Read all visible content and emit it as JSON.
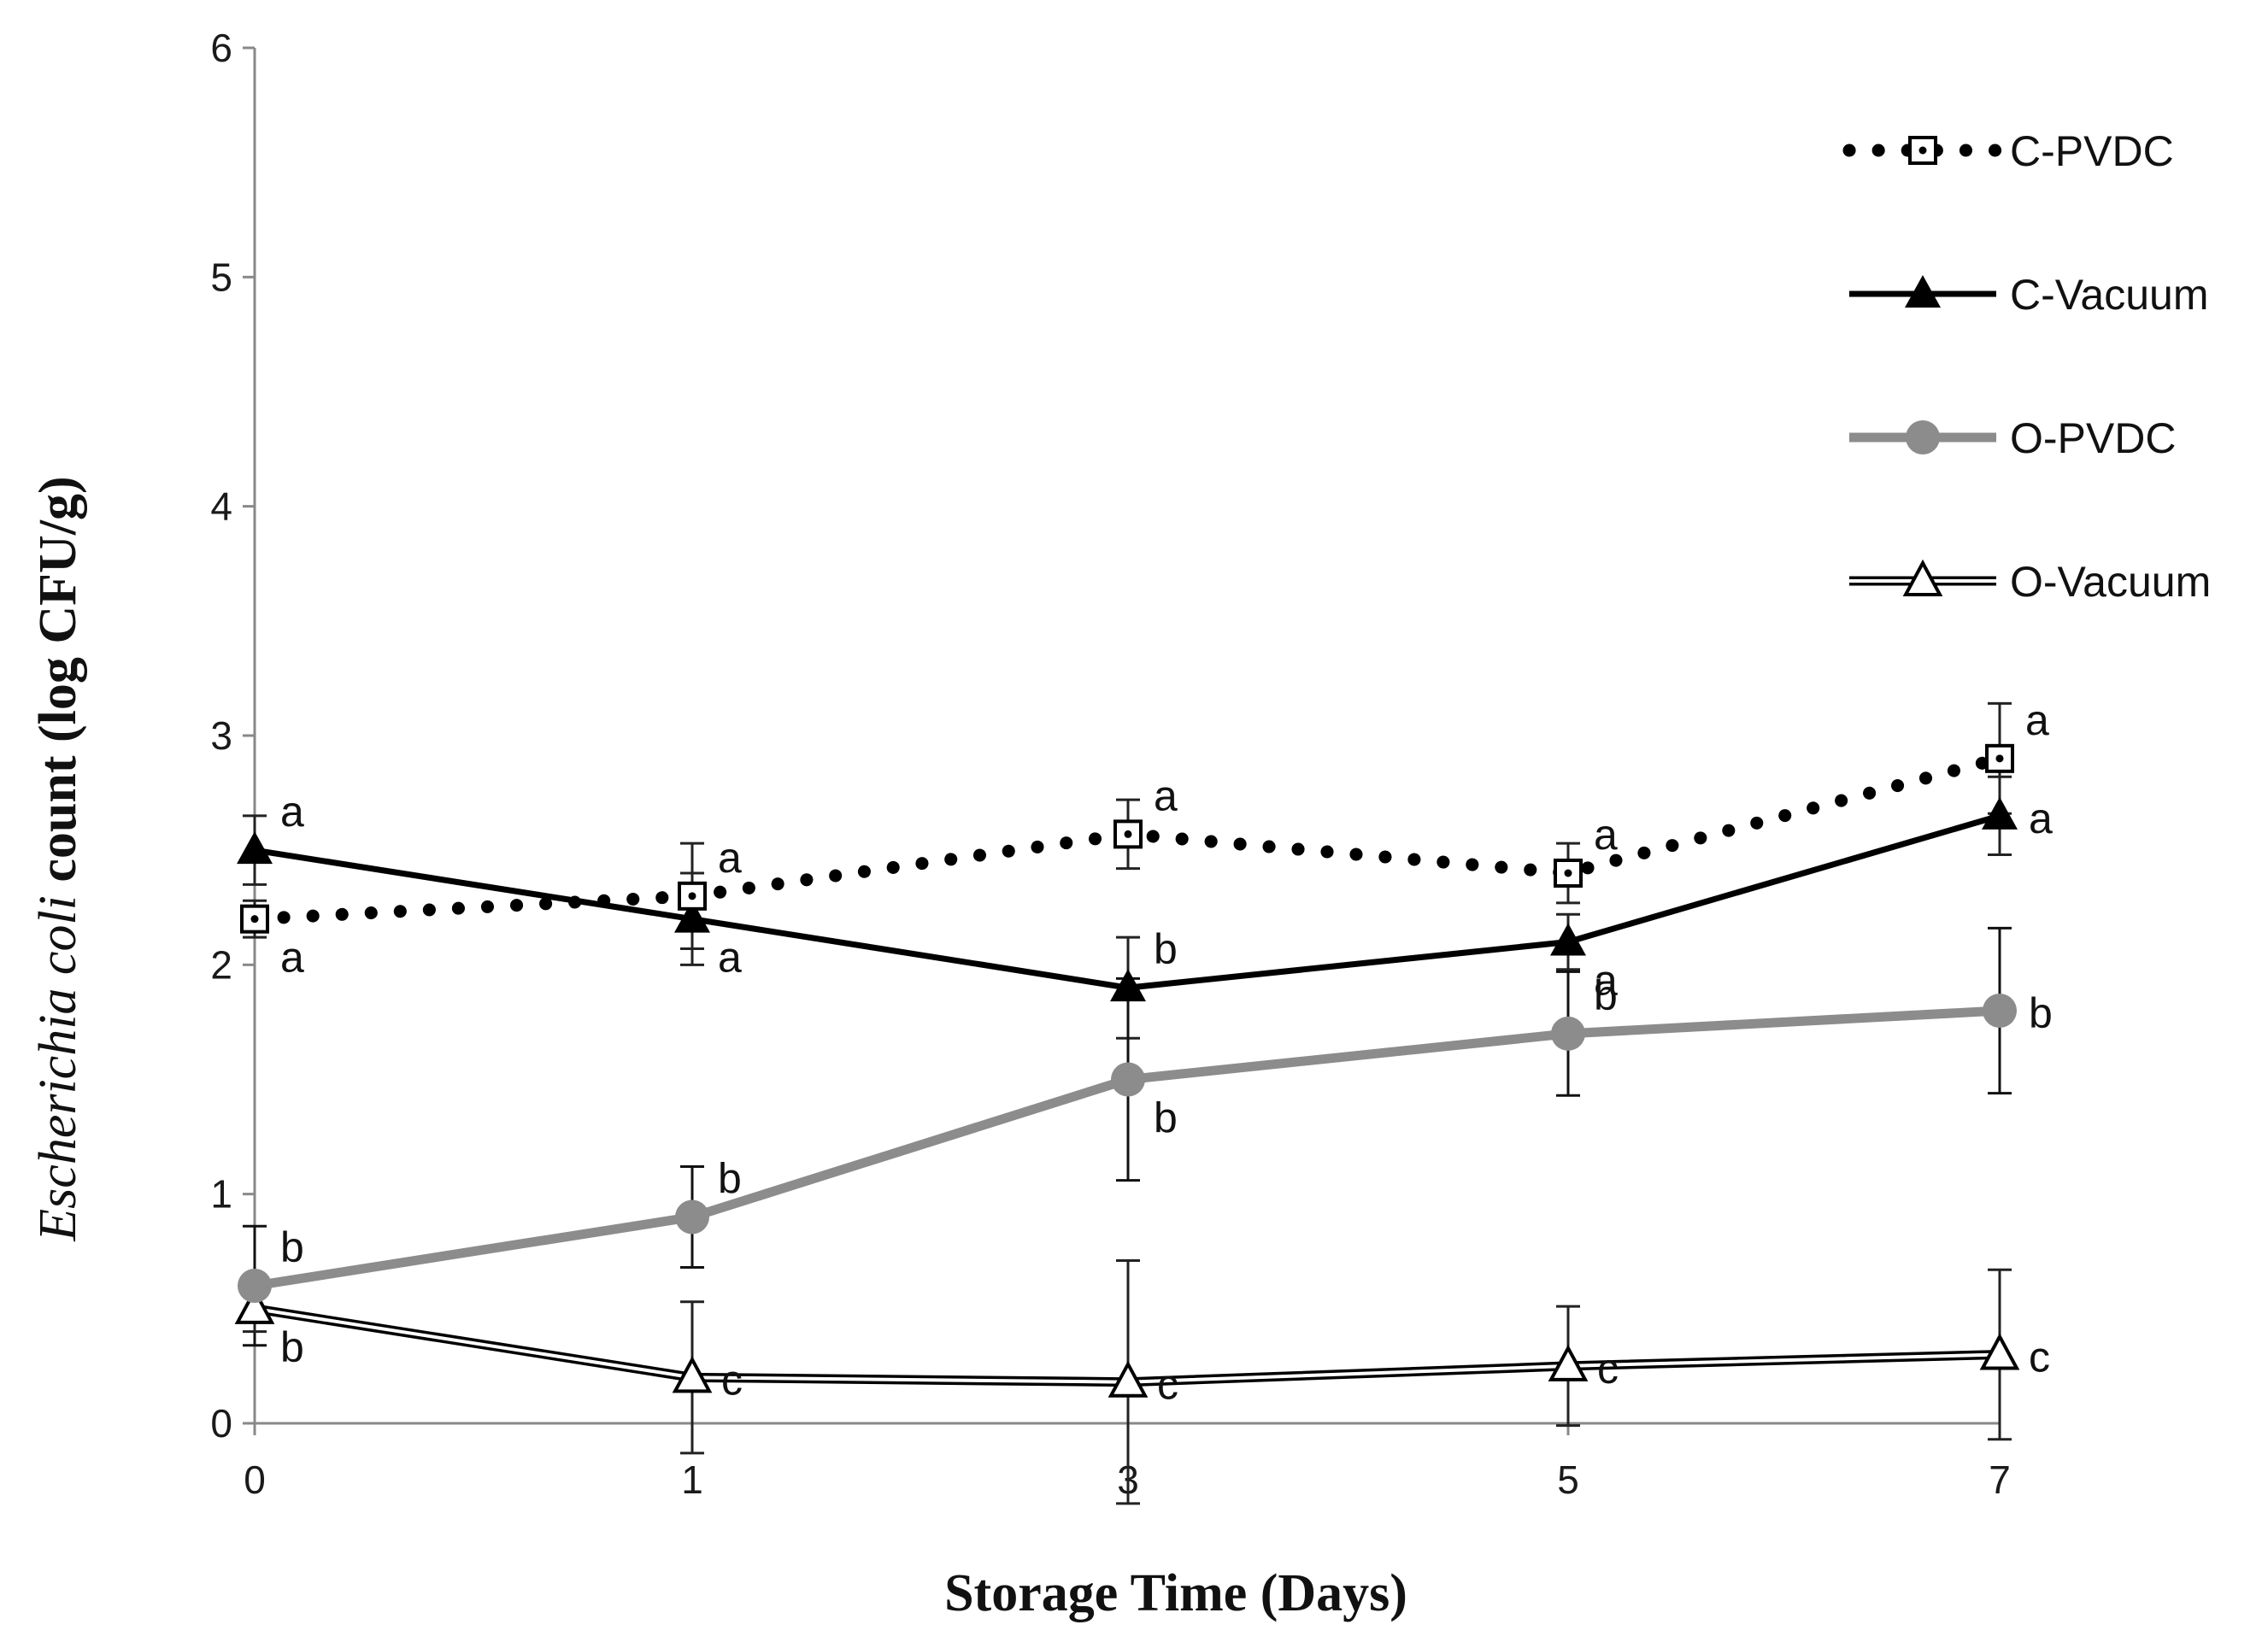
{
  "chart_data": {
    "type": "line",
    "title": "",
    "xlabel": "Storage Time  (Days)",
    "ylabel_italic": "Escherichia coli",
    "ylabel_rest": " count (log CFU/g)",
    "categories": [
      "0",
      "1",
      "3",
      "5",
      "7"
    ],
    "ylim": [
      0,
      6
    ],
    "yticks": [
      "0",
      "1",
      "2",
      "3",
      "4",
      "5",
      "6"
    ],
    "grid": false,
    "legend_position": "top-right",
    "series": [
      {
        "name": "C-PVDC",
        "style": "dotted",
        "marker": "square-dot",
        "color": "#000000",
        "values": [
          2.2,
          2.3,
          2.57,
          2.4,
          2.9
        ],
        "error": [
          0.08,
          0.23,
          0.15,
          0.13,
          0.24
        ],
        "labels": [
          "a",
          "a",
          "a",
          "a",
          "a"
        ],
        "label_pos": [
          "below",
          "above",
          "above",
          "above",
          "above"
        ]
      },
      {
        "name": "C-Vacuum",
        "style": "solid",
        "marker": "triangle-filled",
        "color": "#000000",
        "values": [
          2.5,
          2.2,
          1.9,
          2.1,
          2.65
        ],
        "error": [
          0.15,
          0.2,
          0.22,
          0.12,
          0.17
        ],
        "labels": [
          "a",
          "a",
          "b",
          "a",
          "a"
        ],
        "label_pos": [
          "above",
          "below",
          "above",
          "below",
          "right"
        ]
      },
      {
        "name": "O-PVDC",
        "style": "solid-thick",
        "marker": "circle-filled",
        "color": "#8c8c8c",
        "values": [
          0.6,
          0.9,
          1.5,
          1.7,
          1.8
        ],
        "error": [
          0.26,
          0.22,
          0.44,
          0.27,
          0.36
        ],
        "labels": [
          "b",
          "b",
          "b",
          "b",
          "b"
        ],
        "label_pos": [
          "above",
          "above",
          "below",
          "above",
          "right"
        ]
      },
      {
        "name": "O-Vacuum",
        "style": "double",
        "marker": "triangle-open",
        "color": "#000000",
        "values": [
          0.5,
          0.2,
          0.18,
          0.25,
          0.3
        ],
        "error": [
          0.1,
          0.33,
          0.53,
          0.26,
          0.37
        ],
        "labels": [
          "b",
          "c",
          "c",
          "c",
          "c"
        ],
        "label_pos": [
          "below",
          "right",
          "right",
          "right",
          "right"
        ]
      }
    ]
  }
}
